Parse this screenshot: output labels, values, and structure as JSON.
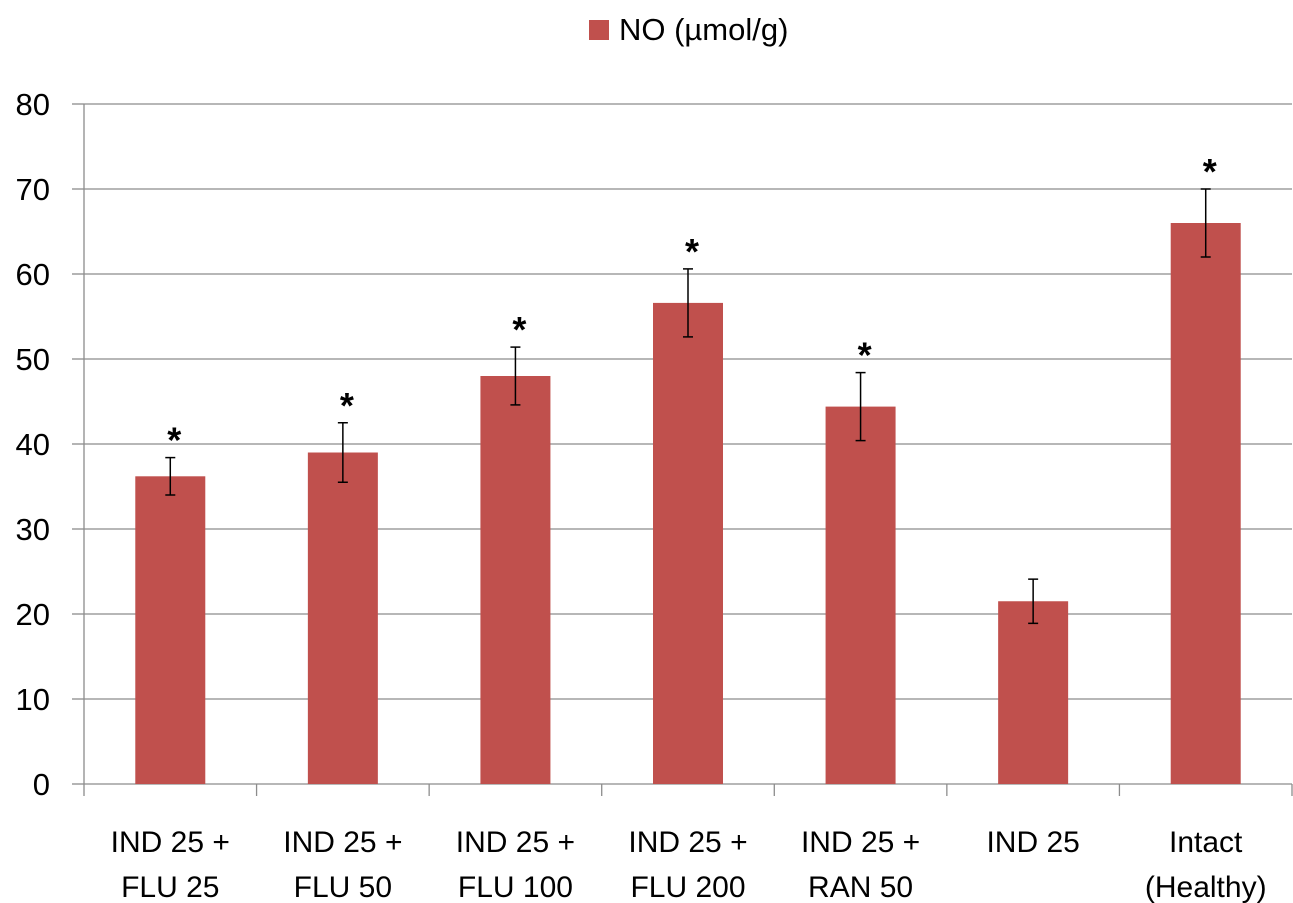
{
  "legend": {
    "label": "NO (µmol/g)",
    "color": "#c0504d"
  },
  "chart_data": {
    "type": "bar",
    "title": "",
    "xlabel": "",
    "ylabel": "",
    "ylim": [
      0,
      80
    ],
    "yticks": [
      0,
      10,
      20,
      30,
      40,
      50,
      60,
      70,
      80
    ],
    "grid": true,
    "legend_position": "top-center",
    "bar_color": "#c0504d",
    "categories": [
      [
        "IND 25 +",
        "FLU 25"
      ],
      [
        "IND 25 +",
        "FLU 50"
      ],
      [
        "IND 25 +",
        "FLU 100"
      ],
      [
        "IND 25 +",
        "FLU 200"
      ],
      [
        "IND 25 +",
        "RAN 50"
      ],
      [
        "IND 25"
      ],
      [
        "Intact",
        "(Healthy)"
      ]
    ],
    "series": [
      {
        "name": "NO (µmol/g)",
        "values": [
          36.2,
          39.0,
          48.0,
          56.6,
          44.4,
          21.5,
          66.0
        ],
        "error": [
          2.2,
          3.5,
          3.4,
          4.0,
          4.0,
          2.6,
          4.0
        ],
        "significance": [
          "*",
          "*",
          "*",
          "*",
          "*",
          "",
          "*"
        ]
      }
    ]
  }
}
